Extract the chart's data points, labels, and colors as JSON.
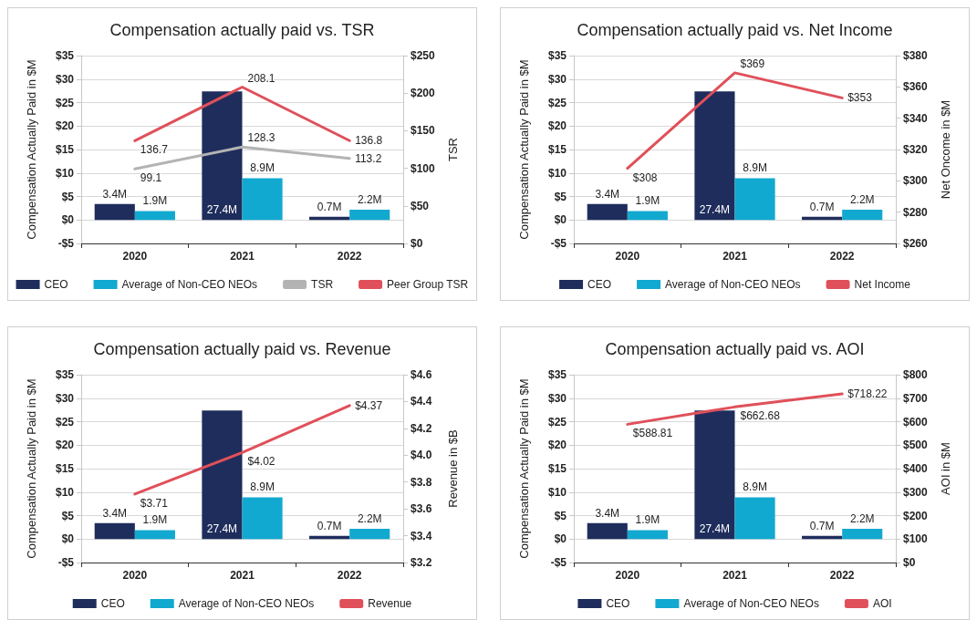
{
  "chart_data": [
    {
      "type": "bar",
      "title": "Compensation actually paid vs. TSR",
      "ylabel": "Compensation Actually Paid in $M",
      "y2label": "TSR",
      "categories": [
        "2020",
        "2021",
        "2022"
      ],
      "series": [
        {
          "name": "CEO",
          "color": "#1f2d5c",
          "values": [
            3.4,
            27.4,
            0.7
          ],
          "value_labels": [
            "3.4M",
            "27.4M",
            "0.7M"
          ]
        },
        {
          "name": "Average of Non-CEO NEOs",
          "color": "#12a9d0",
          "values": [
            1.9,
            8.9,
            2.2
          ],
          "value_labels": [
            "1.9M",
            "8.9M",
            "2.2M"
          ]
        },
        {
          "name": "TSR",
          "type": "line",
          "axis": "y2",
          "color": "#b3b3b3",
          "values": [
            99.1,
            128.3,
            113.2
          ],
          "value_labels": [
            "99.1",
            "128.3",
            "113.2"
          ]
        },
        {
          "name": "Peer Group TSR",
          "type": "line",
          "axis": "y2",
          "color": "#e0505a",
          "values": [
            136.7,
            208.1,
            136.8
          ],
          "value_labels": [
            "136.7",
            "208.1",
            "136.8"
          ]
        }
      ],
      "ylim": [
        -5,
        35
      ],
      "yticks": [
        {
          "value": -5,
          "label": "-$5"
        },
        {
          "value": 0,
          "label": "$0"
        },
        {
          "value": 5,
          "label": "$5"
        },
        {
          "value": 10,
          "label": "$10"
        },
        {
          "value": 15,
          "label": "$15"
        },
        {
          "value": 20,
          "label": "$20"
        },
        {
          "value": 25,
          "label": "$25"
        },
        {
          "value": 30,
          "label": "$30"
        },
        {
          "value": 35,
          "label": "$35"
        }
      ],
      "y2lim": [
        0,
        250
      ],
      "y2ticks": [
        {
          "value": 0,
          "label": "$0"
        },
        {
          "value": 50,
          "label": "$50"
        },
        {
          "value": 100,
          "label": "$100"
        },
        {
          "value": 150,
          "label": "$150"
        },
        {
          "value": 200,
          "label": "$200"
        },
        {
          "value": 250,
          "label": "$250"
        }
      ],
      "grid": "y",
      "legend": "bottom",
      "marker": "none",
      "line_style": "solid"
    },
    {
      "type": "bar",
      "title": "Compensation actually paid vs. Net Income",
      "ylabel": "Compensation Actually Paid in $M",
      "y2label": "Net Oncome in $M",
      "categories": [
        "2020",
        "2021",
        "2022"
      ],
      "series": [
        {
          "name": "CEO",
          "color": "#1f2d5c",
          "values": [
            3.4,
            27.4,
            0.7
          ],
          "value_labels": [
            "3.4M",
            "27.4M",
            "0.7M"
          ]
        },
        {
          "name": "Average of Non-CEO NEOs",
          "color": "#12a9d0",
          "values": [
            1.9,
            8.9,
            2.2
          ],
          "value_labels": [
            "1.9M",
            "8.9M",
            "2.2M"
          ]
        },
        {
          "name": "Net Income",
          "type": "line",
          "axis": "y2",
          "color": "#e0505a",
          "values": [
            308,
            369,
            353
          ],
          "value_labels": [
            "$308",
            "$369",
            "$353"
          ]
        }
      ],
      "ylim": [
        -5,
        35
      ],
      "yticks": [
        {
          "value": -5,
          "label": "-$5"
        },
        {
          "value": 0,
          "label": "$0"
        },
        {
          "value": 5,
          "label": "$5"
        },
        {
          "value": 10,
          "label": "$10"
        },
        {
          "value": 15,
          "label": "$15"
        },
        {
          "value": 20,
          "label": "$20"
        },
        {
          "value": 25,
          "label": "$25"
        },
        {
          "value": 30,
          "label": "$30"
        },
        {
          "value": 35,
          "label": "$35"
        }
      ],
      "y2lim": [
        260,
        380
      ],
      "y2ticks": [
        {
          "value": 260,
          "label": "$260"
        },
        {
          "value": 280,
          "label": "$280"
        },
        {
          "value": 300,
          "label": "$300"
        },
        {
          "value": 320,
          "label": "$320"
        },
        {
          "value": 340,
          "label": "$340"
        },
        {
          "value": 360,
          "label": "$360"
        },
        {
          "value": 380,
          "label": "$380"
        }
      ],
      "grid": "y",
      "legend": "bottom",
      "marker": "none",
      "line_style": "solid"
    },
    {
      "type": "bar",
      "title": "Compensation actually paid vs. Revenue",
      "ylabel": "Compensation Actually Paid in $M",
      "y2label": "Revenue in $B",
      "categories": [
        "2020",
        "2021",
        "2022"
      ],
      "series": [
        {
          "name": "CEO",
          "color": "#1f2d5c",
          "values": [
            3.4,
            27.4,
            0.7
          ],
          "value_labels": [
            "3.4M",
            "27.4M",
            "0.7M"
          ]
        },
        {
          "name": "Average of Non-CEO NEOs",
          "color": "#12a9d0",
          "values": [
            1.9,
            8.9,
            2.2
          ],
          "value_labels": [
            "1.9M",
            "8.9M",
            "2.2M"
          ]
        },
        {
          "name": "Revenue",
          "type": "line",
          "axis": "y2",
          "color": "#e0505a",
          "values": [
            3.71,
            4.02,
            4.37
          ],
          "value_labels": [
            "$3.71",
            "$4.02",
            "$4.37"
          ]
        }
      ],
      "ylim": [
        -5,
        35
      ],
      "yticks": [
        {
          "value": -5,
          "label": "-$5"
        },
        {
          "value": 0,
          "label": "$0"
        },
        {
          "value": 5,
          "label": "$5"
        },
        {
          "value": 10,
          "label": "$10"
        },
        {
          "value": 15,
          "label": "$15"
        },
        {
          "value": 20,
          "label": "$20"
        },
        {
          "value": 25,
          "label": "$25"
        },
        {
          "value": 30,
          "label": "$30"
        },
        {
          "value": 35,
          "label": "$35"
        }
      ],
      "y2lim": [
        3.2,
        4.6
      ],
      "y2ticks": [
        {
          "value": 3.2,
          "label": "$3.2"
        },
        {
          "value": 3.4,
          "label": "$3.4"
        },
        {
          "value": 3.6,
          "label": "$3.6"
        },
        {
          "value": 3.8,
          "label": "$3.8"
        },
        {
          "value": 4.0,
          "label": "$4.0"
        },
        {
          "value": 4.2,
          "label": "$4.2"
        },
        {
          "value": 4.4,
          "label": "$4.4"
        },
        {
          "value": 4.6,
          "label": "$4.6"
        }
      ],
      "grid": "y",
      "legend": "bottom",
      "marker": "none",
      "line_style": "solid"
    },
    {
      "type": "bar",
      "title": "Compensation actually paid vs. AOI",
      "ylabel": "Compensation Actually Paid in $M",
      "y2label": "AOI in $M",
      "categories": [
        "2020",
        "2021",
        "2022"
      ],
      "series": [
        {
          "name": "CEO",
          "color": "#1f2d5c",
          "values": [
            3.4,
            27.4,
            0.7
          ],
          "value_labels": [
            "3.4M",
            "27.4M",
            "0.7M"
          ]
        },
        {
          "name": "Average of Non-CEO NEOs",
          "color": "#12a9d0",
          "values": [
            1.9,
            8.9,
            2.2
          ],
          "value_labels": [
            "1.9M",
            "8.9M",
            "2.2M"
          ]
        },
        {
          "name": "AOI",
          "type": "line",
          "axis": "y2",
          "color": "#e0505a",
          "values": [
            588.81,
            662.68,
            718.22
          ],
          "value_labels": [
            "$588.81",
            "$662.68",
            "$718.22"
          ]
        }
      ],
      "ylim": [
        -5,
        35
      ],
      "yticks": [
        {
          "value": -5,
          "label": "-$5"
        },
        {
          "value": 0,
          "label": "$0"
        },
        {
          "value": 5,
          "label": "$5"
        },
        {
          "value": 10,
          "label": "$10"
        },
        {
          "value": 15,
          "label": "$15"
        },
        {
          "value": 20,
          "label": "$20"
        },
        {
          "value": 25,
          "label": "$25"
        },
        {
          "value": 30,
          "label": "$30"
        },
        {
          "value": 35,
          "label": "$35"
        }
      ],
      "y2lim": [
        0,
        800
      ],
      "y2ticks": [
        {
          "value": 0,
          "label": "$0"
        },
        {
          "value": 100,
          "label": "$100"
        },
        {
          "value": 200,
          "label": "$200"
        },
        {
          "value": 300,
          "label": "$300"
        },
        {
          "value": 400,
          "label": "$400"
        },
        {
          "value": 500,
          "label": "$500"
        },
        {
          "value": 600,
          "label": "$600"
        },
        {
          "value": 700,
          "label": "$700"
        },
        {
          "value": 800,
          "label": "$800"
        }
      ],
      "grid": "y",
      "legend": "bottom",
      "marker": "none",
      "line_style": "solid"
    }
  ]
}
